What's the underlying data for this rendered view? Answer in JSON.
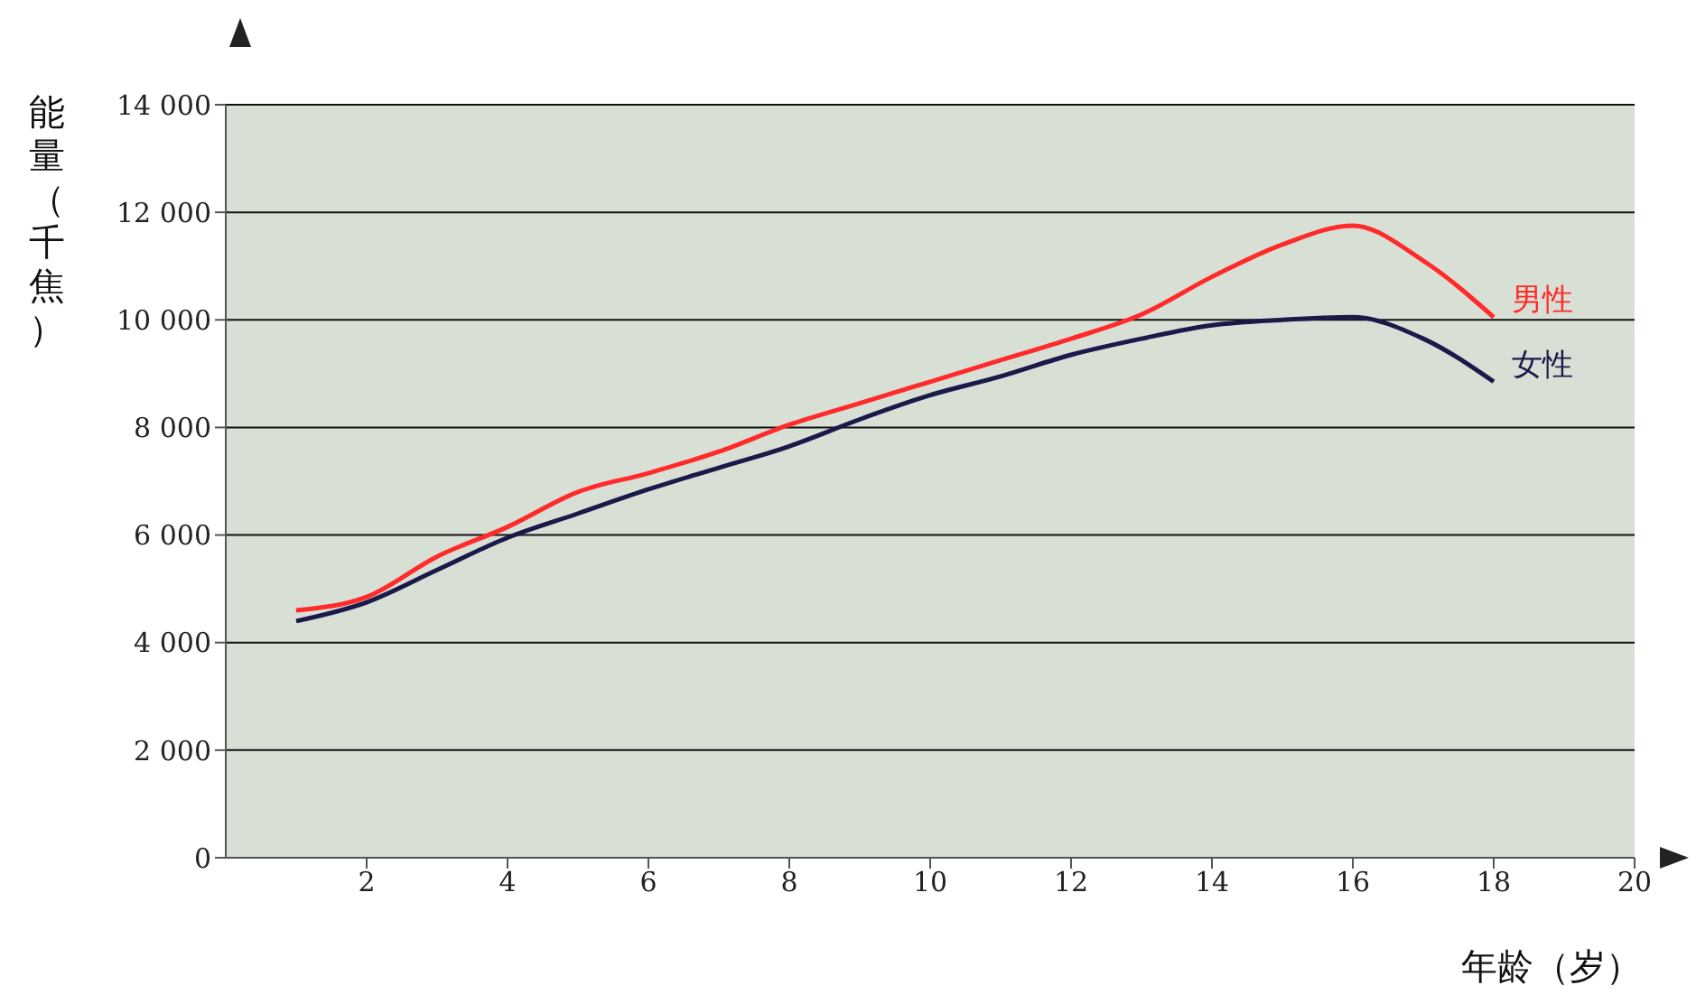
{
  "chart_data": {
    "type": "line",
    "xlabel": "年龄（岁）",
    "ylabel": "能量（千焦）",
    "x": [
      1,
      2,
      3,
      4,
      5,
      6,
      7,
      8,
      9,
      10,
      11,
      12,
      13,
      14,
      15,
      16,
      17,
      18
    ],
    "series": [
      {
        "name": "男性",
        "color": "#ff2a2a",
        "values": [
          4600,
          4850,
          5600,
          6150,
          6800,
          7150,
          7550,
          8050,
          8450,
          8850,
          9250,
          9650,
          10100,
          10800,
          11400,
          11750,
          11100,
          10050
        ]
      },
      {
        "name": "女性",
        "color": "#1a1a4a",
        "values": [
          4400,
          4750,
          5350,
          5950,
          6400,
          6850,
          7250,
          7650,
          8150,
          8600,
          8950,
          9350,
          9650,
          9900,
          10000,
          10050,
          9650,
          8850
        ]
      }
    ],
    "xlim": [
      0,
      20
    ],
    "xticks": [
      2,
      4,
      6,
      8,
      10,
      12,
      14,
      16,
      18,
      20
    ],
    "ylim": [
      0,
      14000
    ],
    "yticks": [
      0,
      {
        "value": 2000,
        "label": "2 000"
      },
      {
        "value": 4000,
        "label": "4 000"
      },
      {
        "value": 6000,
        "label": "6 000"
      },
      {
        "value": 8000,
        "label": "8 000"
      },
      {
        "value": 10000,
        "label": "10 000"
      },
      {
        "value": 12000,
        "label": "12 000"
      },
      {
        "value": 14000,
        "label": "14 000"
      }
    ],
    "grid": "y",
    "legend": false,
    "marker": "none",
    "line_style": "solid"
  }
}
